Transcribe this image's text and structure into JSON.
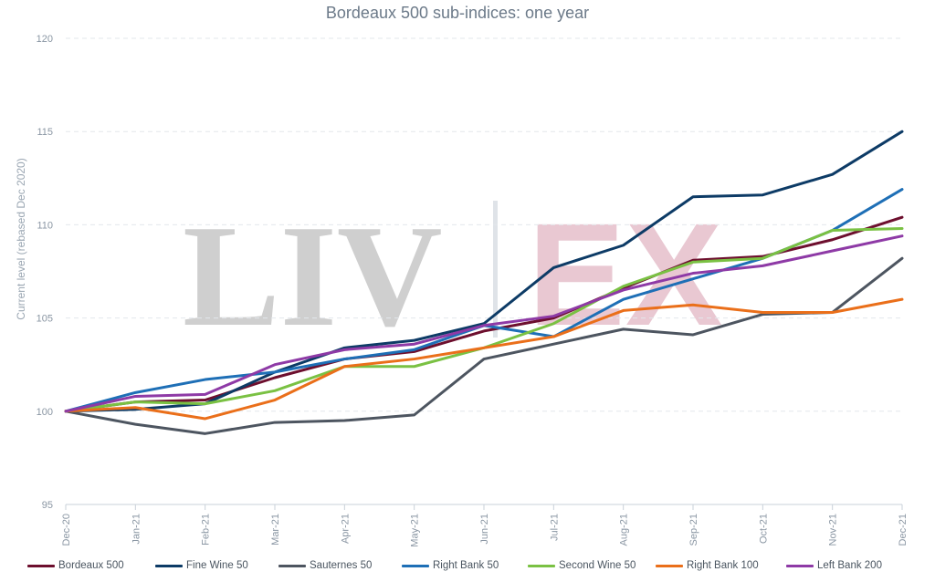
{
  "chart_data": {
    "type": "line",
    "title": "Bordeaux 500 sub-indices: one year",
    "ylabel": "Current level (rebased  Dec 2020)",
    "xlabel": "",
    "ylim": [
      95,
      120
    ],
    "yticks": [
      95,
      100,
      105,
      110,
      115,
      120
    ],
    "grid": true,
    "legend_position": "bottom",
    "x": [
      "Dec-20",
      "Jan-21",
      "Feb-21",
      "Mar-21",
      "Apr-21",
      "May-21",
      "Jun-21",
      "Jul-21",
      "Aug-21",
      "Sep-21",
      "Oct-21",
      "Nov-21",
      "Dec-21"
    ],
    "series": [
      {
        "name": "Bordeaux 500",
        "color": "#6d0f2e",
        "values": [
          100,
          100.5,
          100.6,
          101.8,
          102.8,
          103.2,
          104.3,
          105.0,
          106.6,
          108.1,
          108.3,
          109.2,
          110.4
        ]
      },
      {
        "name": "Fine Wine 50",
        "color": "#0d3b66",
        "values": [
          100,
          100.1,
          100.4,
          102.1,
          103.4,
          103.8,
          104.7,
          107.7,
          108.9,
          111.5,
          111.6,
          112.7,
          115.0
        ]
      },
      {
        "name": "Sauternes 50",
        "color": "#4d5560",
        "values": [
          100,
          99.3,
          98.8,
          99.4,
          99.5,
          99.8,
          102.8,
          103.6,
          104.4,
          104.1,
          105.2,
          105.3,
          108.2
        ]
      },
      {
        "name": "Right Bank 50",
        "color": "#1e6fb6",
        "values": [
          100,
          101.0,
          101.7,
          102.1,
          102.8,
          103.3,
          104.6,
          104.0,
          106.0,
          107.1,
          108.2,
          109.7,
          111.9
        ]
      },
      {
        "name": "Second Wine 50",
        "color": "#7ac143",
        "values": [
          100,
          100.5,
          100.4,
          101.1,
          102.4,
          102.4,
          103.4,
          104.7,
          106.7,
          108.0,
          108.2,
          109.7,
          109.8
        ]
      },
      {
        "name": "Right Bank 100",
        "color": "#ea6f1a",
        "values": [
          100,
          100.2,
          99.6,
          100.6,
          102.4,
          102.8,
          103.4,
          104.0,
          105.4,
          105.7,
          105.3,
          105.3,
          106.0
        ]
      },
      {
        "name": "Left Bank 200",
        "color": "#8e3aa6",
        "values": [
          100,
          100.8,
          100.9,
          102.5,
          103.3,
          103.6,
          104.6,
          105.1,
          106.5,
          107.4,
          107.8,
          108.6,
          109.4
        ]
      }
    ]
  },
  "watermark": {
    "left_text": "LIV",
    "right_text": "EX",
    "left_color": "#cfcfcf",
    "right_color": "#e9c8d2",
    "bar_color": "#dfe3e8"
  }
}
